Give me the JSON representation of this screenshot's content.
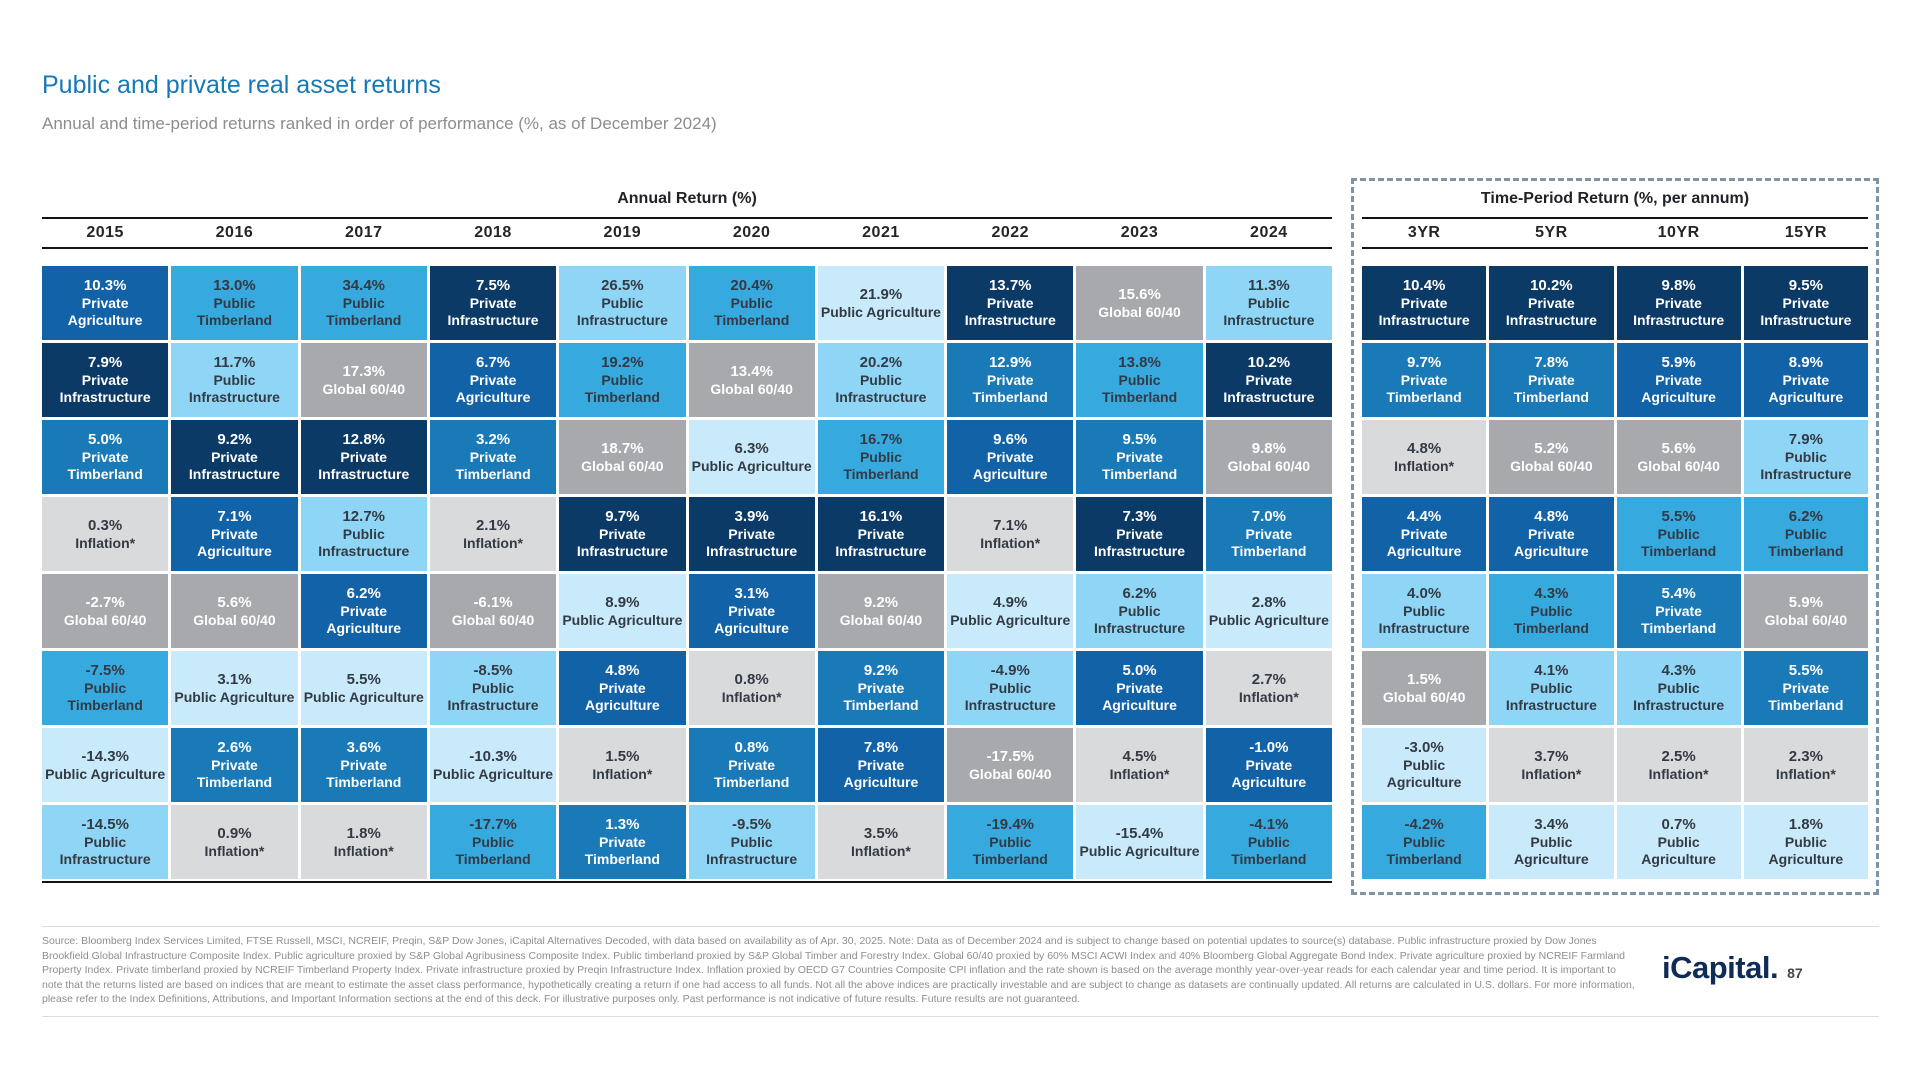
{
  "title": "Public and private real asset returns",
  "subtitle": "Annual and time-period returns ranked in order of performance (%, as of December 2024)",
  "chart_data": {
    "type": "table",
    "title": "Public and private real asset returns",
    "subtitle": "Annual and time-period returns ranked in order of performance (%, as of December 2024)",
    "legend_note": "quilt-style ranking table; each column sorted best-to-worst return",
    "assets": {
      "private-infrastructure": {
        "label": "Private Infrastructure",
        "bg": "#0c3a67",
        "fg": "#ffffff"
      },
      "private-agriculture": {
        "label": "Private Agriculture",
        "bg": "#1262a8",
        "fg": "#ffffff"
      },
      "private-timberland": {
        "label": "Private Timberland",
        "bg": "#1a79b7",
        "fg": "#ffffff"
      },
      "public-timberland": {
        "label": "Public Timberland",
        "bg": "#36a9df",
        "fg": "#333a43"
      },
      "public-infrastructure": {
        "label": "Public Infrastructure",
        "bg": "#8fd6f6",
        "fg": "#333a43"
      },
      "public-agriculture": {
        "label": "Public Agriculture",
        "bg": "#c9eafb",
        "fg": "#333a43"
      },
      "global-60-40": {
        "label": "Global 60/40",
        "bg": "#a7a9ac",
        "fg": "#ffffff"
      },
      "inflation": {
        "label": "Inflation*",
        "bg": "#d9dadc",
        "fg": "#333a43"
      }
    },
    "annual": {
      "section_title": "Annual Return (%)",
      "columns": [
        {
          "year": "2015",
          "cells": [
            {
              "v": "10.3%",
              "a": "private-agriculture"
            },
            {
              "v": "7.9%",
              "a": "private-infrastructure"
            },
            {
              "v": "5.0%",
              "a": "private-timberland"
            },
            {
              "v": "0.3%",
              "a": "inflation"
            },
            {
              "v": "-2.7%",
              "a": "global-60-40"
            },
            {
              "v": "-7.5%",
              "a": "public-timberland"
            },
            {
              "v": "-14.3%",
              "a": "public-agriculture"
            },
            {
              "v": "-14.5%",
              "a": "public-infrastructure"
            }
          ]
        },
        {
          "year": "2016",
          "cells": [
            {
              "v": "13.0%",
              "a": "public-timberland"
            },
            {
              "v": "11.7%",
              "a": "public-infrastructure"
            },
            {
              "v": "9.2%",
              "a": "private-infrastructure"
            },
            {
              "v": "7.1%",
              "a": "private-agriculture"
            },
            {
              "v": "5.6%",
              "a": "global-60-40"
            },
            {
              "v": "3.1%",
              "a": "public-agriculture"
            },
            {
              "v": "2.6%",
              "a": "private-timberland"
            },
            {
              "v": "0.9%",
              "a": "inflation"
            }
          ]
        },
        {
          "year": "2017",
          "cells": [
            {
              "v": "34.4%",
              "a": "public-timberland"
            },
            {
              "v": "17.3%",
              "a": "global-60-40"
            },
            {
              "v": "12.8%",
              "a": "private-infrastructure"
            },
            {
              "v": "12.7%",
              "a": "public-infrastructure"
            },
            {
              "v": "6.2%",
              "a": "private-agriculture"
            },
            {
              "v": "5.5%",
              "a": "public-agriculture"
            },
            {
              "v": "3.6%",
              "a": "private-timberland"
            },
            {
              "v": "1.8%",
              "a": "inflation"
            }
          ]
        },
        {
          "year": "2018",
          "cells": [
            {
              "v": "7.5%",
              "a": "private-infrastructure"
            },
            {
              "v": "6.7%",
              "a": "private-agriculture"
            },
            {
              "v": "3.2%",
              "a": "private-timberland"
            },
            {
              "v": "2.1%",
              "a": "inflation"
            },
            {
              "v": "-6.1%",
              "a": "global-60-40"
            },
            {
              "v": "-8.5%",
              "a": "public-infrastructure"
            },
            {
              "v": "-10.3%",
              "a": "public-agriculture"
            },
            {
              "v": "-17.7%",
              "a": "public-timberland"
            }
          ]
        },
        {
          "year": "2019",
          "cells": [
            {
              "v": "26.5%",
              "a": "public-infrastructure"
            },
            {
              "v": "19.2%",
              "a": "public-timberland"
            },
            {
              "v": "18.7%",
              "a": "global-60-40"
            },
            {
              "v": "9.7%",
              "a": "private-infrastructure"
            },
            {
              "v": "8.9%",
              "a": "public-agriculture"
            },
            {
              "v": "4.8%",
              "a": "private-agriculture"
            },
            {
              "v": "1.5%",
              "a": "inflation"
            },
            {
              "v": "1.3%",
              "a": "private-timberland"
            }
          ]
        },
        {
          "year": "2020",
          "cells": [
            {
              "v": "20.4%",
              "a": "public-timberland"
            },
            {
              "v": "13.4%",
              "a": "global-60-40"
            },
            {
              "v": "6.3%",
              "a": "public-agriculture"
            },
            {
              "v": "3.9%",
              "a": "private-infrastructure"
            },
            {
              "v": "3.1%",
              "a": "private-agriculture"
            },
            {
              "v": "0.8%",
              "a": "inflation"
            },
            {
              "v": "0.8%",
              "a": "private-timberland"
            },
            {
              "v": "-9.5%",
              "a": "public-infrastructure"
            }
          ]
        },
        {
          "year": "2021",
          "cells": [
            {
              "v": "21.9%",
              "a": "public-agriculture"
            },
            {
              "v": "20.2%",
              "a": "public-infrastructure"
            },
            {
              "v": "16.7%",
              "a": "public-timberland"
            },
            {
              "v": "16.1%",
              "a": "private-infrastructure"
            },
            {
              "v": "9.2%",
              "a": "global-60-40"
            },
            {
              "v": "9.2%",
              "a": "private-timberland"
            },
            {
              "v": "7.8%",
              "a": "private-agriculture"
            },
            {
              "v": "3.5%",
              "a": "inflation"
            }
          ]
        },
        {
          "year": "2022",
          "cells": [
            {
              "v": "13.7%",
              "a": "private-infrastructure"
            },
            {
              "v": "12.9%",
              "a": "private-timberland"
            },
            {
              "v": "9.6%",
              "a": "private-agriculture"
            },
            {
              "v": "7.1%",
              "a": "inflation"
            },
            {
              "v": "4.9%",
              "a": "public-agriculture"
            },
            {
              "v": "-4.9%",
              "a": "public-infrastructure"
            },
            {
              "v": "-17.5%",
              "a": "global-60-40"
            },
            {
              "v": "-19.4%",
              "a": "public-timberland"
            }
          ]
        },
        {
          "year": "2023",
          "cells": [
            {
              "v": "15.6%",
              "a": "global-60-40"
            },
            {
              "v": "13.8%",
              "a": "public-timberland"
            },
            {
              "v": "9.5%",
              "a": "private-timberland"
            },
            {
              "v": "7.3%",
              "a": "private-infrastructure"
            },
            {
              "v": "6.2%",
              "a": "public-infrastructure"
            },
            {
              "v": "5.0%",
              "a": "private-agriculture"
            },
            {
              "v": "4.5%",
              "a": "inflation"
            },
            {
              "v": "-15.4%",
              "a": "public-agriculture"
            }
          ]
        },
        {
          "year": "2024",
          "cells": [
            {
              "v": "11.3%",
              "a": "public-infrastructure"
            },
            {
              "v": "10.2%",
              "a": "private-infrastructure"
            },
            {
              "v": "9.8%",
              "a": "global-60-40"
            },
            {
              "v": "7.0%",
              "a": "private-timberland"
            },
            {
              "v": "2.8%",
              "a": "public-agriculture"
            },
            {
              "v": "2.7%",
              "a": "inflation"
            },
            {
              "v": "-1.0%",
              "a": "private-agriculture"
            },
            {
              "v": "-4.1%",
              "a": "public-timberland"
            }
          ]
        }
      ]
    },
    "period": {
      "section_title": "Time-Period Return (%, per annum)",
      "columns": [
        {
          "year": "3YR",
          "cells": [
            {
              "v": "10.4%",
              "a": "private-infrastructure"
            },
            {
              "v": "9.7%",
              "a": "private-timberland"
            },
            {
              "v": "4.8%",
              "a": "inflation"
            },
            {
              "v": "4.4%",
              "a": "private-agriculture"
            },
            {
              "v": "4.0%",
              "a": "public-infrastructure"
            },
            {
              "v": "1.5%",
              "a": "global-60-40"
            },
            {
              "v": "-3.0%",
              "a": "public-agriculture"
            },
            {
              "v": "-4.2%",
              "a": "public-timberland"
            }
          ]
        },
        {
          "year": "5YR",
          "cells": [
            {
              "v": "10.2%",
              "a": "private-infrastructure"
            },
            {
              "v": "7.8%",
              "a": "private-timberland"
            },
            {
              "v": "5.2%",
              "a": "global-60-40"
            },
            {
              "v": "4.8%",
              "a": "private-agriculture"
            },
            {
              "v": "4.3%",
              "a": "public-timberland"
            },
            {
              "v": "4.1%",
              "a": "public-infrastructure"
            },
            {
              "v": "3.7%",
              "a": "inflation"
            },
            {
              "v": "3.4%",
              "a": "public-agriculture"
            }
          ]
        },
        {
          "year": "10YR",
          "cells": [
            {
              "v": "9.8%",
              "a": "private-infrastructure"
            },
            {
              "v": "5.9%",
              "a": "private-agriculture"
            },
            {
              "v": "5.6%",
              "a": "global-60-40"
            },
            {
              "v": "5.5%",
              "a": "public-timberland"
            },
            {
              "v": "5.4%",
              "a": "private-timberland"
            },
            {
              "v": "4.3%",
              "a": "public-infrastructure"
            },
            {
              "v": "2.5%",
              "a": "inflation"
            },
            {
              "v": "0.7%",
              "a": "public-agriculture"
            }
          ]
        },
        {
          "year": "15YR",
          "cells": [
            {
              "v": "9.5%",
              "a": "private-infrastructure"
            },
            {
              "v": "8.9%",
              "a": "private-agriculture"
            },
            {
              "v": "7.9%",
              "a": "public-infrastructure"
            },
            {
              "v": "6.2%",
              "a": "public-timberland"
            },
            {
              "v": "5.9%",
              "a": "global-60-40"
            },
            {
              "v": "5.5%",
              "a": "private-timberland"
            },
            {
              "v": "2.3%",
              "a": "inflation"
            },
            {
              "v": "1.8%",
              "a": "public-agriculture"
            }
          ]
        }
      ]
    }
  },
  "footer": {
    "text": "Source: Bloomberg Index Services Limited, FTSE Russell, MSCI, NCREIF, Preqin, S&P Dow Jones, iCapital Alternatives Decoded, with data based on availability as of Apr. 30, 2025. Note: Data as of December 2024 and is subject to change based on potential updates to source(s) database. Public infrastructure proxied by Dow Jones Brookfield Global Infrastructure Composite Index. Public agriculture proxied by S&P Global Agribusiness Composite Index. Public timberland proxied by S&P Global Timber and Forestry Index. Global 60/40 proxied by 60% MSCI ACWI Index and 40% Bloomberg Global Aggregate Bond Index. Private agriculture proxied by NCREIF Farmland Property Index. Private timberland proxied by NCREIF Timberland Property Index. Private infrastructure proxied by Preqin Infrastructure Index. Inflation proxied by OECD G7 Countries Composite CPI inflation and the rate shown is based on the average monthly year-over-year reads for each calendar year and time period. It is important to note that the returns listed are based on indices that are meant to estimate the asset class performance, hypothetically creating a return if one had access to all funds. Not all the above indices are practically investable and are subject to change as datasets are continually updated. All returns are calculated in U.S. dollars. For more information, please refer to the Index Definitions, Attributions, and Important Information sections at the end of this deck. For illustrative purposes only. Past performance is not indicative of future results. Future results are not guaranteed.",
    "logo": "iCapital.",
    "page_number": "87"
  }
}
